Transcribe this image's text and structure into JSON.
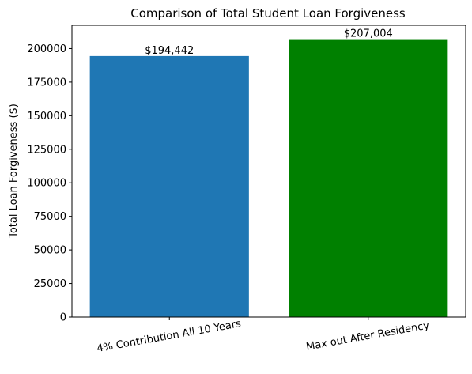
{
  "chart_data": {
    "type": "bar",
    "title": "Comparison of Total Student Loan Forgiveness",
    "xlabel": "",
    "ylabel": "Total Loan Forgiveness ($)",
    "categories": [
      "4% Contribution All 10 Years",
      "Max out After Residency"
    ],
    "values": [
      194442,
      207004
    ],
    "data_labels": [
      "$194,442",
      "$207,004"
    ],
    "bar_colors": [
      "#1f77b4",
      "#008000"
    ],
    "ylim": [
      0,
      217354
    ],
    "yticks": [
      0,
      25000,
      50000,
      75000,
      100000,
      125000,
      150000,
      175000,
      200000
    ],
    "ytick_labels": [
      "0",
      "25000",
      "50000",
      "75000",
      "100000",
      "125000",
      "150000",
      "175000",
      "200000"
    ],
    "grid": false,
    "legend": "none"
  }
}
